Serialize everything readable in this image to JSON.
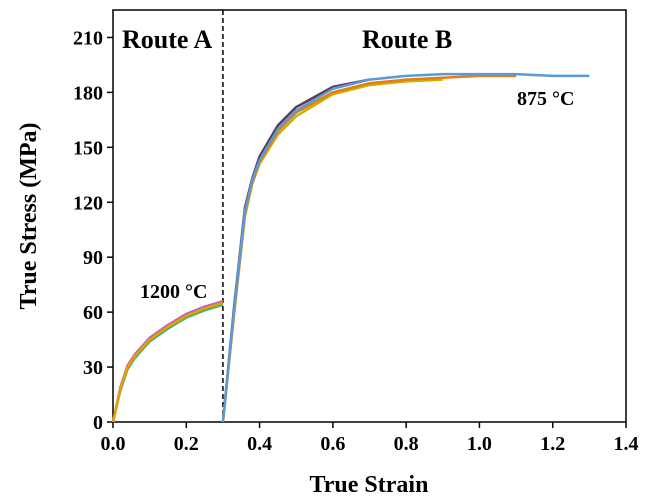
{
  "chart_data": {
    "type": "line",
    "x_label": "True Strain",
    "y_label": "True Stress (MPa)",
    "xlim": [
      0,
      1.4
    ],
    "ylim": [
      0,
      225
    ],
    "xticks": [
      {
        "value": 0,
        "label": "0.0"
      },
      0.2,
      0.4,
      0.6,
      0.8,
      {
        "value": 1,
        "label": "1.0"
      },
      1.2,
      1.4
    ],
    "yticks": [
      0,
      30,
      60,
      90,
      120,
      150,
      180,
      210
    ],
    "divider_x": 0.3,
    "annotations": [
      "Route A",
      "Route B",
      "1200 °C",
      "875 °C"
    ],
    "series": [
      {
        "color": "#3cb371",
        "x": [
          0,
          0.02,
          0.04,
          0.06,
          0.1,
          0.15,
          0.2,
          0.25,
          0.3
        ],
        "values": [
          0,
          17,
          29,
          35,
          44,
          51,
          57,
          61,
          64
        ]
      },
      {
        "color": "#c060c0",
        "x": [
          0,
          0.02,
          0.04,
          0.06,
          0.1,
          0.15,
          0.2,
          0.25,
          0.3
        ],
        "values": [
          0,
          19,
          31,
          37,
          46,
          53,
          59,
          63,
          66
        ]
      },
      {
        "color": "#e8a000",
        "x": [
          0,
          0.02,
          0.04,
          0.06,
          0.1,
          0.15,
          0.2,
          0.25,
          0.3
        ],
        "values": [
          0,
          18,
          30,
          36,
          45,
          52,
          58,
          62,
          65
        ]
      },
      {
        "color": "#5a3a5a",
        "x": [
          0.3,
          0.33,
          0.36,
          0.38,
          0.4,
          0.45,
          0.5,
          0.6,
          0.7
        ],
        "values": [
          0,
          62,
          117,
          133,
          145,
          162,
          172,
          183,
          187
        ]
      },
      {
        "color": "#c8b400",
        "x": [
          0.3,
          0.33,
          0.36,
          0.38,
          0.4,
          0.45,
          0.5,
          0.6,
          0.7,
          0.8,
          0.9
        ],
        "values": [
          0,
          58,
          112,
          130,
          141,
          157,
          167,
          179,
          184,
          186,
          187
        ]
      },
      {
        "color": "#e87a1a",
        "x": [
          0.3,
          0.33,
          0.36,
          0.38,
          0.4,
          0.45,
          0.5,
          0.6,
          0.7,
          0.8,
          0.9,
          1.0,
          1.1
        ],
        "values": [
          0,
          59,
          114,
          131,
          142,
          159,
          169,
          180,
          185,
          187,
          188,
          189,
          189
        ]
      },
      {
        "color": "#5b9bd5",
        "x": [
          0.3,
          0.33,
          0.36,
          0.38,
          0.4,
          0.45,
          0.5,
          0.6,
          0.7,
          0.8,
          0.9,
          1.0,
          1.1,
          1.2,
          1.3
        ],
        "values": [
          0,
          60,
          115,
          132,
          143,
          160,
          170,
          182,
          187,
          189,
          190,
          190,
          190,
          189,
          189
        ]
      }
    ]
  }
}
